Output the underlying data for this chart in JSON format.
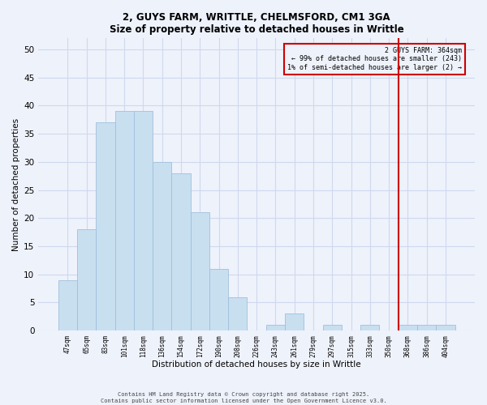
{
  "title": "2, GUYS FARM, WRITTLE, CHELMSFORD, CM1 3GA",
  "subtitle": "Size of property relative to detached houses in Writtle",
  "xlabel": "Distribution of detached houses by size in Writtle",
  "ylabel": "Number of detached properties",
  "bar_labels": [
    "47sqm",
    "65sqm",
    "83sqm",
    "101sqm",
    "118sqm",
    "136sqm",
    "154sqm",
    "172sqm",
    "190sqm",
    "208sqm",
    "226sqm",
    "243sqm",
    "261sqm",
    "279sqm",
    "297sqm",
    "315sqm",
    "333sqm",
    "350sqm",
    "368sqm",
    "386sqm",
    "404sqm"
  ],
  "bar_values": [
    9,
    18,
    37,
    39,
    39,
    30,
    28,
    21,
    11,
    6,
    0,
    1,
    3,
    0,
    1,
    0,
    1,
    0,
    1,
    1,
    1
  ],
  "bar_color": "#c8dff0",
  "bar_edge_color": "#a0c0dc",
  "ylim": [
    0,
    52
  ],
  "yticks": [
    0,
    5,
    10,
    15,
    20,
    25,
    30,
    35,
    40,
    45,
    50
  ],
  "vline_index": 17.5,
  "vline_color": "#cc0000",
  "annotation_title": "2 GUYS FARM: 364sqm",
  "annotation_line1": "← 99% of detached houses are smaller (243)",
  "annotation_line2": "1% of semi-detached houses are larger (2) →",
  "annotation_box_color": "#cc0000",
  "footer1": "Contains HM Land Registry data © Crown copyright and database right 2025.",
  "footer2": "Contains public sector information licensed under the Open Government Licence v3.0.",
  "grid_color": "#d0d8ee",
  "background_color": "#eef2fb"
}
